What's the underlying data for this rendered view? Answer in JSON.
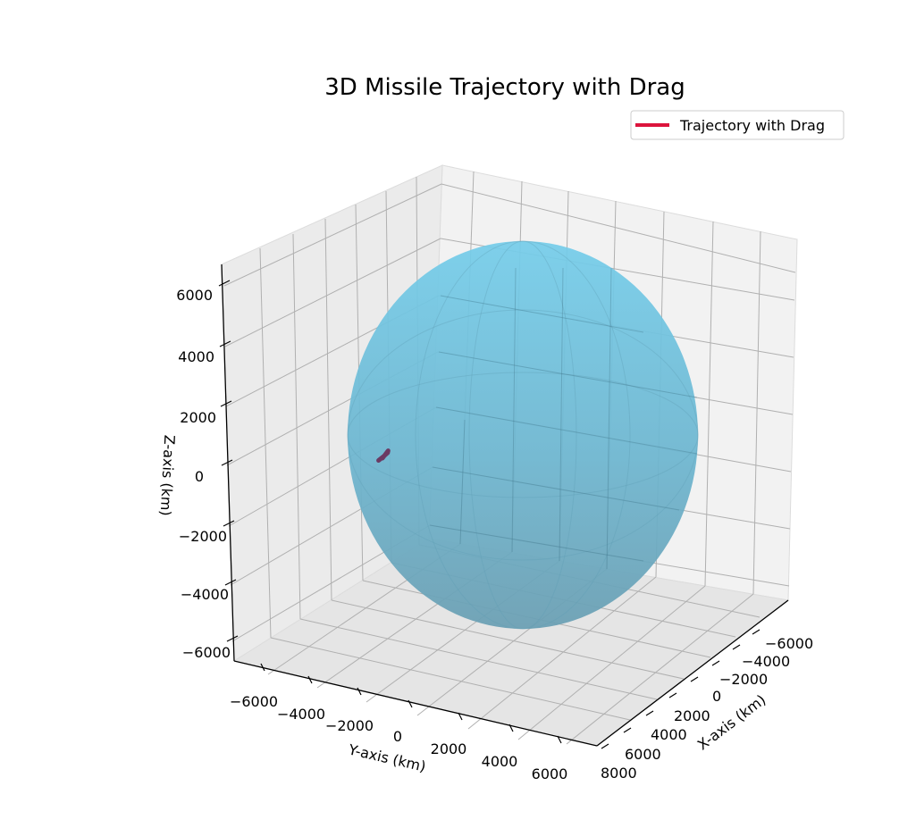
{
  "chart_data": {
    "type": "line",
    "projection": "3d",
    "title": "3D Missile Trajectory with Drag",
    "xlabel": "X-axis (km)",
    "ylabel": "Y-axis (km)",
    "zlabel": "Z-axis (km)",
    "x_ticks": [
      "−6000",
      "−4000",
      "−2000",
      "0",
      "2000",
      "4000",
      "6000",
      "8000"
    ],
    "y_ticks": [
      "−6000",
      "−4000",
      "−2000",
      "0",
      "2000",
      "4000",
      "6000"
    ],
    "z_ticks": [
      "6000",
      "4000",
      "2000",
      "0",
      "−2000",
      "−4000",
      "−6000"
    ],
    "xlim": [
      -7000,
      8000
    ],
    "ylim": [
      -7000,
      7000
    ],
    "zlim": [
      -6500,
      6500
    ],
    "grid": true,
    "legend": {
      "placement": "top-right",
      "entries": [
        {
          "label": "Trajectory with Drag",
          "color": "#dc143c"
        }
      ]
    },
    "surfaces": [
      {
        "type": "sphere",
        "center": [
          0,
          0,
          0
        ],
        "radius": 6371,
        "color": "#87ceeb",
        "alpha": 0.6
      }
    ],
    "series": [
      {
        "name": "Trajectory with Drag",
        "color": "#dc143c",
        "points": [
          [
            -1200,
            -4700,
            -300
          ],
          [
            -1100,
            -4550,
            -150
          ],
          [
            -1050,
            -4450,
            -50
          ],
          [
            -1100,
            -4400,
            0
          ],
          [
            -1200,
            -4550,
            -250
          ]
        ]
      }
    ]
  }
}
